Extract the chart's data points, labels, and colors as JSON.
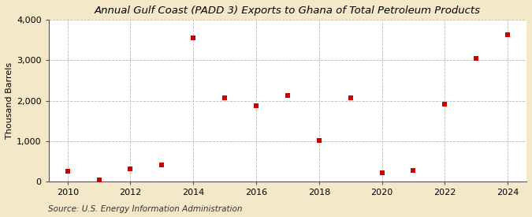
{
  "title": "Annual Gulf Coast (PADD 3) Exports to Ghana of Total Petroleum Products",
  "ylabel": "Thousand Barrels",
  "source": "Source: U.S. Energy Information Administration",
  "background_color": "#f5e8c8",
  "plot_background_color": "#ffffff",
  "years": [
    2010,
    2011,
    2012,
    2013,
    2014,
    2015,
    2016,
    2017,
    2018,
    2019,
    2020,
    2021,
    2022,
    2023,
    2024
  ],
  "values": [
    253,
    28,
    317,
    401,
    3564,
    2062,
    1877,
    2120,
    1012,
    2066,
    216,
    278,
    1912,
    3041,
    3638
  ],
  "marker_color": "#cc0000",
  "marker_size": 5,
  "ylim": [
    0,
    4000
  ],
  "yticks": [
    0,
    1000,
    2000,
    3000,
    4000
  ],
  "xlim": [
    2009.4,
    2024.6
  ],
  "xticks": [
    2010,
    2012,
    2014,
    2016,
    2018,
    2020,
    2022,
    2024
  ],
  "grid_color": "#bbbbbb",
  "title_fontsize": 9.5,
  "axis_fontsize": 8,
  "source_fontsize": 7.5
}
